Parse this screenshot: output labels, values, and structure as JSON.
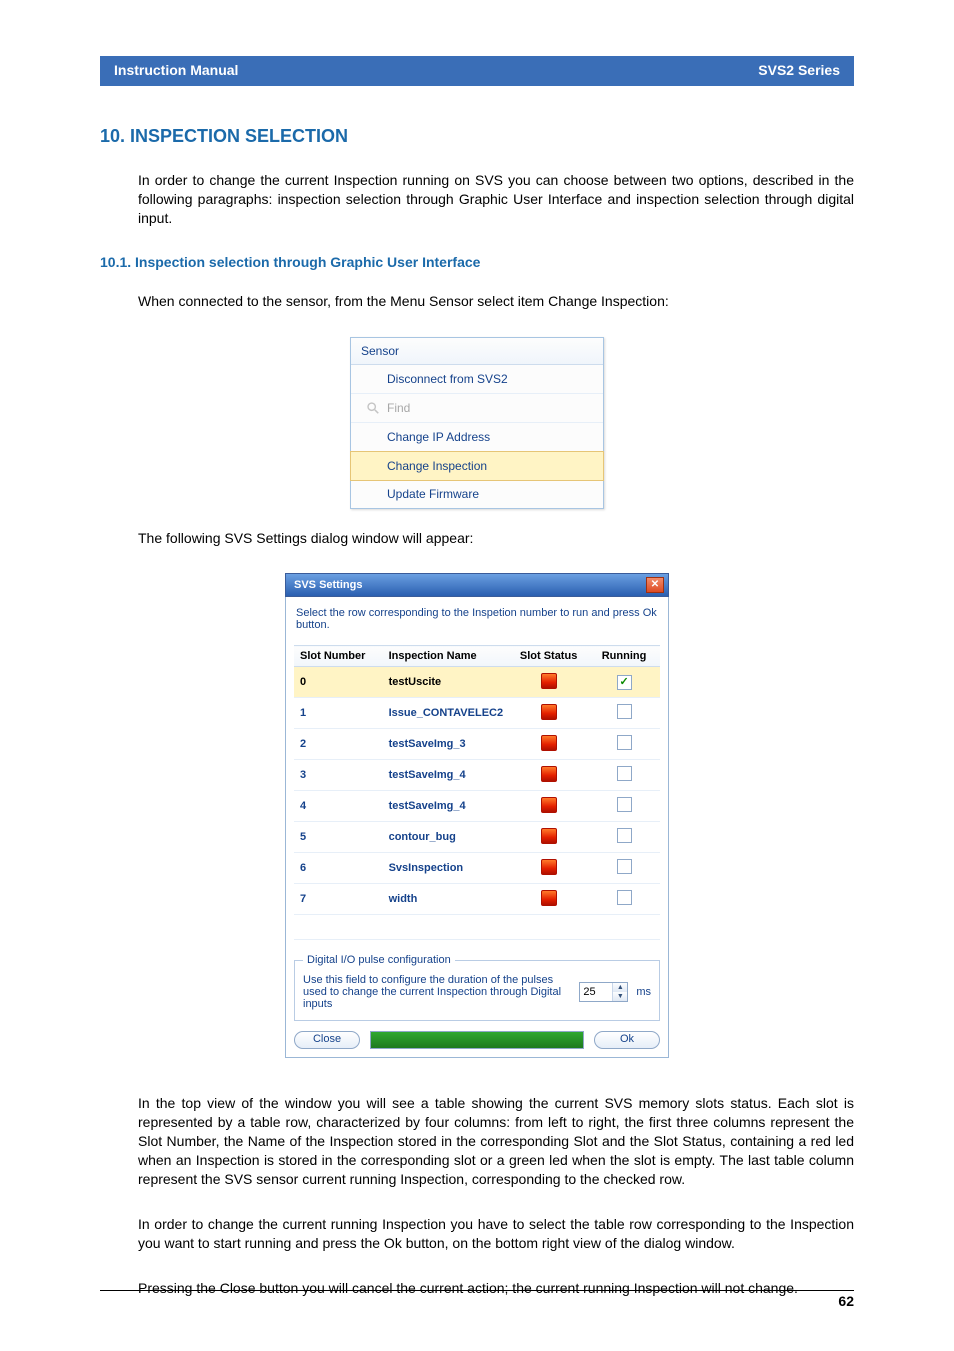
{
  "header": {
    "left": "Instruction Manual",
    "right": "SVS2 Series"
  },
  "section": {
    "number_title": "10.   INSPECTION SELECTION",
    "intro": "In order to change the current Inspection running on SVS you can choose between two options, described in the following paragraphs: inspection selection through Graphic User Interface and inspection selection through digital input."
  },
  "subsection": {
    "title": "10.1.  Inspection selection through Graphic User Interface",
    "lead": "When connected to the sensor, from the Menu Sensor select item Change Inspection:"
  },
  "menu": {
    "title": "Sensor",
    "items": [
      {
        "label": "Disconnect from SVS2",
        "icon": "",
        "disabled": false,
        "highlight": false
      },
      {
        "label": "Find",
        "icon": "search",
        "disabled": true,
        "highlight": false
      },
      {
        "label": "Change IP Address",
        "icon": "",
        "disabled": false,
        "highlight": false
      },
      {
        "label": "Change Inspection",
        "icon": "",
        "disabled": false,
        "highlight": true
      },
      {
        "label": "Update Firmware",
        "icon": "",
        "disabled": false,
        "highlight": false
      }
    ]
  },
  "after_menu": "The following SVS Settings dialog window will appear:",
  "settings": {
    "title": "SVS Settings",
    "instruction": "Select the row corresponding to the Inspetion number to run and press Ok button.",
    "columns": [
      "Slot Number",
      "Inspection Name",
      "Slot Status",
      "Running"
    ],
    "rows": [
      {
        "num": "0",
        "name": "testUscite",
        "status": "red",
        "running": true,
        "selected": true
      },
      {
        "num": "1",
        "name": "Issue_CONTAVELEC2",
        "status": "red",
        "running": false,
        "selected": false
      },
      {
        "num": "2",
        "name": "testSaveImg_3",
        "status": "red",
        "running": false,
        "selected": false
      },
      {
        "num": "3",
        "name": "testSaveImg_4",
        "status": "red",
        "running": false,
        "selected": false
      },
      {
        "num": "4",
        "name": "testSaveImg_4",
        "status": "red",
        "running": false,
        "selected": false
      },
      {
        "num": "5",
        "name": "contour_bug",
        "status": "red",
        "running": false,
        "selected": false
      },
      {
        "num": "6",
        "name": "SvsInspection",
        "status": "red",
        "running": false,
        "selected": false
      },
      {
        "num": "7",
        "name": "width",
        "status": "red",
        "running": false,
        "selected": false
      }
    ],
    "io": {
      "legend": "Digital I/O pulse configuration",
      "text": "Use this field to configure the duration of the pulses used to change the current Inspection through Digital inputs",
      "value": "25",
      "unit": "ms"
    },
    "buttons": {
      "close": "Close",
      "ok": "Ok"
    }
  },
  "para1": "In the top view of the window you will see a table showing the current SVS memory slots status. Each slot is represented by a table row, characterized by four columns: from left to right, the first three columns represent the Slot Number, the Name of the Inspection stored in the corresponding Slot and the Slot Status, containing a red led when an Inspection is stored in the corresponding slot or a green led when the slot is empty. The last table column represent the SVS sensor current running Inspection, corresponding to the checked row.",
  "para2": "In order to change the current running Inspection you have to select the table row corresponding to the Inspection you want to start running and press the Ok button, on the bottom right view of the dialog window.",
  "para3": "Pressing the Close button you will cancel the current action; the current running Inspection will not change.",
  "page_number": "62"
}
